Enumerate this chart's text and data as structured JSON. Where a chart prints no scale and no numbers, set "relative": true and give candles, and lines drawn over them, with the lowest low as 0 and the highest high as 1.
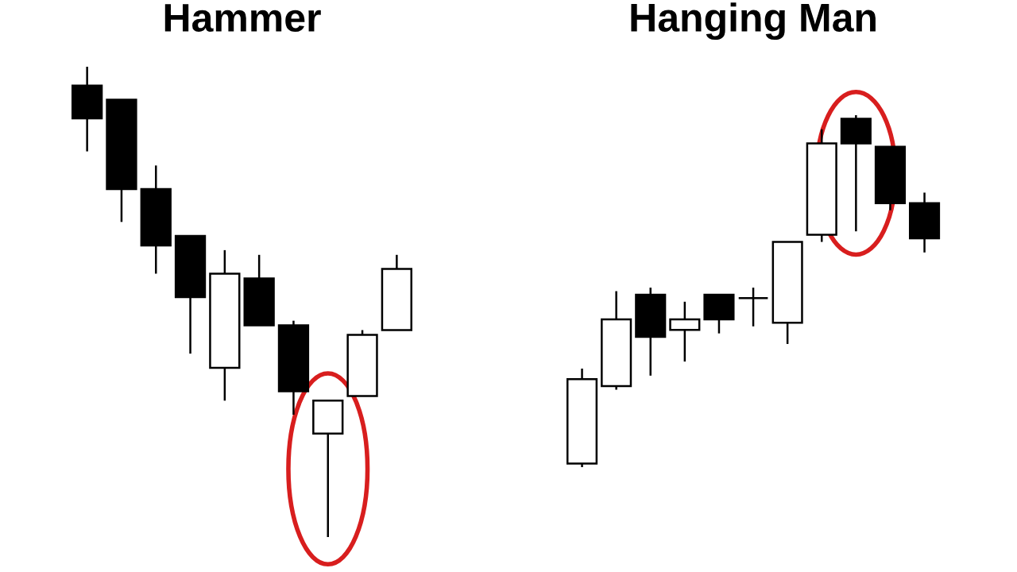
{
  "chart_data": [
    {
      "type": "candlestick",
      "title": "Hammer",
      "relative": true,
      "categories": [
        null,
        null,
        null,
        null,
        null,
        null,
        null,
        null,
        null,
        null
      ],
      "ohlc": [
        [
          0.96,
          1.0,
          0.82,
          0.89
        ],
        [
          0.93,
          0.93,
          0.67,
          0.74
        ],
        [
          0.74,
          0.79,
          0.56,
          0.62
        ],
        [
          0.64,
          0.64,
          0.39,
          0.51
        ],
        [
          0.36,
          0.61,
          0.29,
          0.56
        ],
        [
          0.55,
          0.6,
          0.45,
          0.45
        ],
        [
          0.45,
          0.46,
          0.26,
          0.31
        ],
        [
          0.22,
          0.29,
          0.0,
          0.29
        ],
        [
          0.3,
          0.44,
          0.3,
          0.43
        ],
        [
          0.44,
          0.6,
          0.44,
          0.57
        ]
      ]
    },
    {
      "type": "candlestick",
      "title": "Hanging Man",
      "relative": true,
      "categories": [
        null,
        null,
        null,
        null,
        null,
        null,
        null,
        null,
        null,
        null,
        null
      ],
      "ohlc": [
        [
          0.01,
          0.28,
          0.0,
          0.25
        ],
        [
          0.23,
          0.5,
          0.22,
          0.42
        ],
        [
          0.49,
          0.51,
          0.26,
          0.37
        ],
        [
          0.39,
          0.47,
          0.3,
          0.42
        ],
        [
          0.49,
          0.49,
          0.38,
          0.42
        ],
        [
          0.48,
          0.51,
          0.4,
          0.48
        ],
        [
          0.41,
          0.64,
          0.35,
          0.64
        ],
        [
          0.66,
          0.96,
          0.64,
          0.92
        ],
        [
          0.99,
          1.0,
          0.67,
          0.92
        ],
        [
          0.91,
          0.91,
          0.73,
          0.75
        ],
        [
          0.75,
          0.78,
          0.61,
          0.65
        ]
      ]
    }
  ]
}
